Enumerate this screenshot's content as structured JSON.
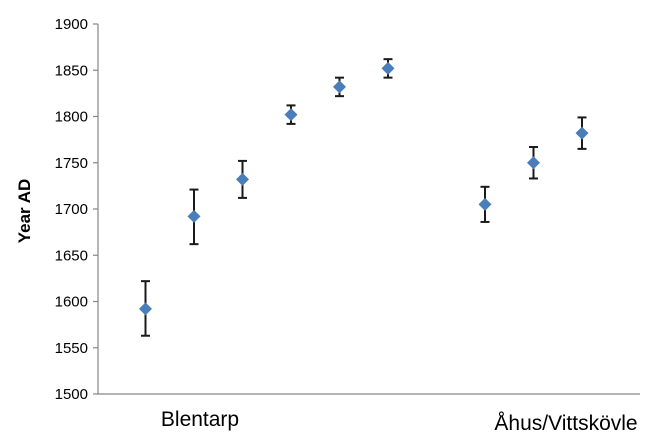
{
  "chart_data": {
    "type": "scatter",
    "title": "",
    "xlabel": "",
    "ylabel": "Year AD",
    "ylim": [
      1500,
      1900
    ],
    "yticks": [
      1500,
      1550,
      1600,
      1650,
      1700,
      1750,
      1800,
      1850,
      1900
    ],
    "grid": false,
    "legend": "none",
    "marker": "diamond",
    "marker_color": "#4a7ebb",
    "errorbar_color": "#1a1a1a",
    "categories": [
      "Blentarp",
      "Åhus/Vittskövle"
    ],
    "points": [
      {
        "index": 1,
        "group": "Blentarp",
        "y": 1592,
        "err_low": 1563,
        "err_high": 1622
      },
      {
        "index": 2,
        "group": "Blentarp",
        "y": 1692,
        "err_low": 1662,
        "err_high": 1721
      },
      {
        "index": 3,
        "group": "Blentarp",
        "y": 1732,
        "err_low": 1712,
        "err_high": 1752
      },
      {
        "index": 4,
        "group": "Blentarp",
        "y": 1802,
        "err_low": 1792,
        "err_high": 1812
      },
      {
        "index": 5,
        "group": "Blentarp",
        "y": 1832,
        "err_low": 1822,
        "err_high": 1842
      },
      {
        "index": 6,
        "group": "Blentarp",
        "y": 1852,
        "err_low": 1842,
        "err_high": 1862
      },
      {
        "index": 8,
        "group": "Åhus/Vittskövle",
        "y": 1705,
        "err_low": 1686,
        "err_high": 1724
      },
      {
        "index": 9,
        "group": "Åhus/Vittskövle",
        "y": 1750,
        "err_low": 1733,
        "err_high": 1767
      },
      {
        "index": 10,
        "group": "Åhus/Vittskövle",
        "y": 1782,
        "err_low": 1765,
        "err_high": 1799
      }
    ]
  }
}
